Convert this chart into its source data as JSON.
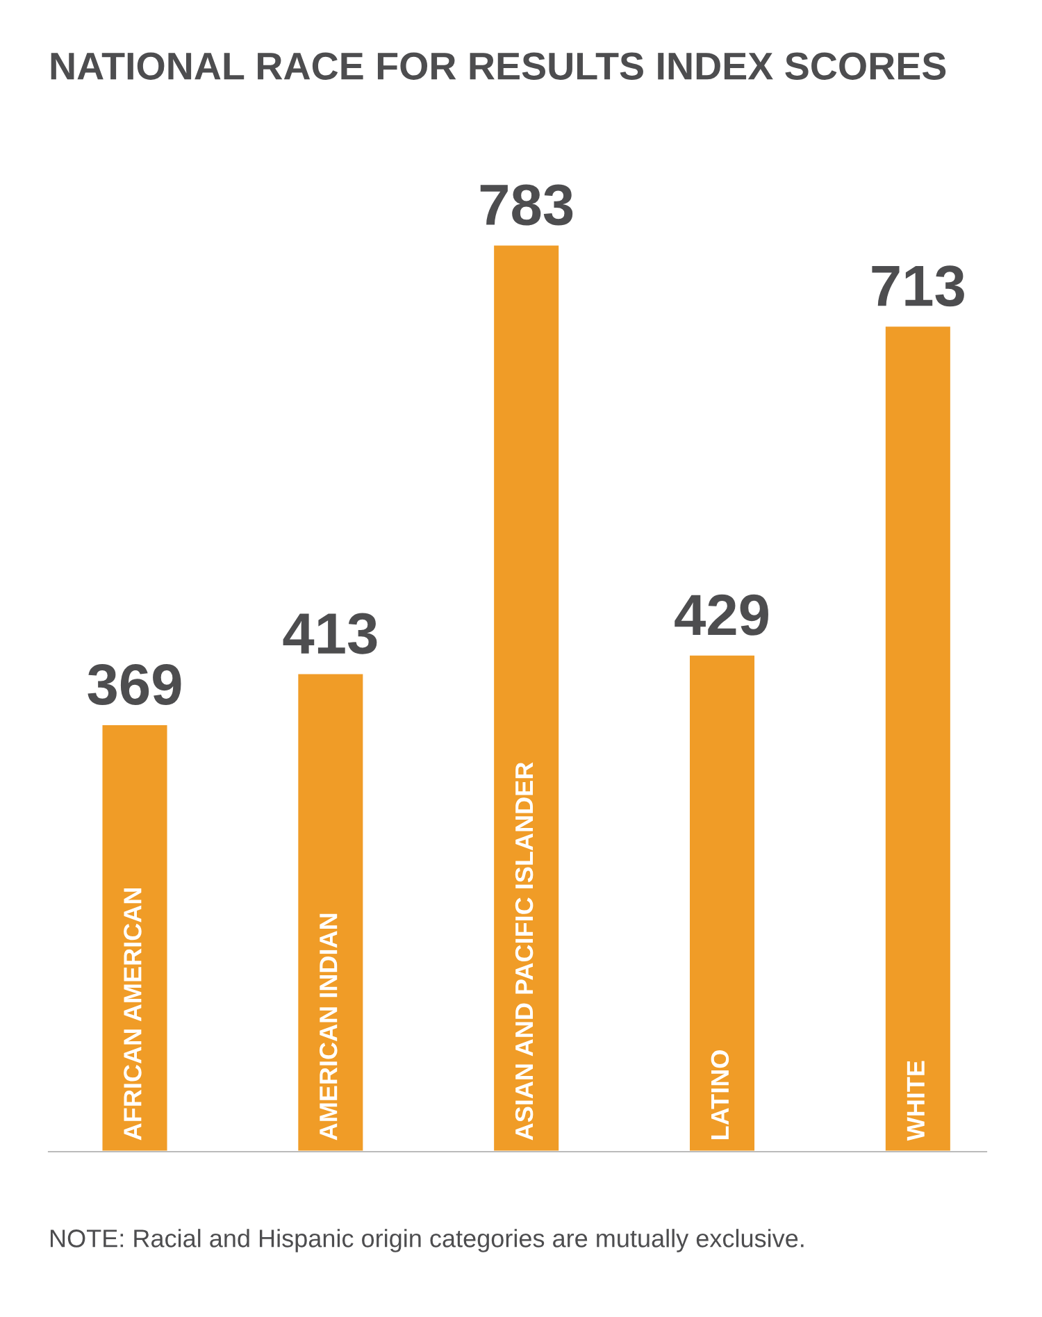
{
  "chart_data": {
    "type": "bar",
    "title": "NATIONAL RACE FOR RESULTS INDEX SCORES",
    "categories": [
      "AFRICAN AMERICAN",
      "AMERICAN INDIAN",
      "ASIAN AND PACIFIC ISLANDER",
      "LATINO",
      "WHITE"
    ],
    "values": [
      369,
      413,
      783,
      429,
      713
    ],
    "color": "#f09c27",
    "data_labels": true,
    "annotations": [
      "NOTE: Racial and Hispanic origin categories are mutually exclusive."
    ]
  }
}
